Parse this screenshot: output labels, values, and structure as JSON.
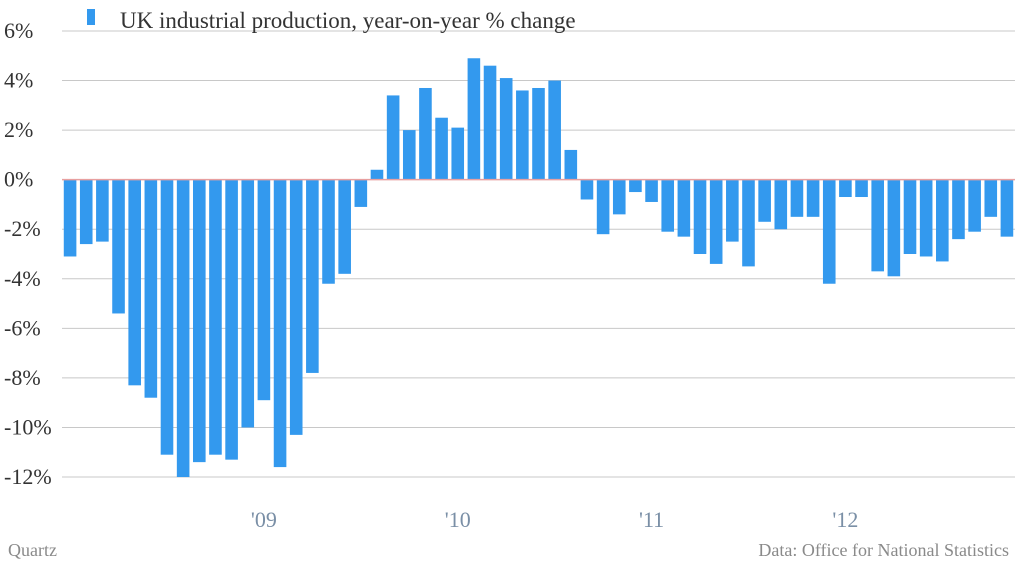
{
  "chart_data": {
    "type": "bar",
    "legend": {
      "label": "UK industrial production, year-on-year % change",
      "placement": "top-left"
    },
    "ylim": [
      -12,
      6
    ],
    "yticks": [
      6,
      4,
      2,
      0,
      -2,
      -4,
      -6,
      -8,
      -10,
      -12
    ],
    "y_tick_labels": [
      "6%",
      "4%",
      "2%",
      "0%",
      "-2%",
      "-4%",
      "-6%",
      "-8%",
      "-10%",
      "-12%"
    ],
    "x_tick_labels": [
      {
        "label": "'09",
        "index": 12
      },
      {
        "label": "'10",
        "index": 24
      },
      {
        "label": "'11",
        "index": 36
      },
      {
        "label": "'12",
        "index": 48
      }
    ],
    "grid": true,
    "series": [
      {
        "values": [
          -3.1,
          -2.6,
          -2.5,
          -5.4,
          -8.3,
          -8.8,
          -11.1,
          -12.0,
          -11.4,
          -11.1,
          -11.3,
          -10.0,
          -8.9,
          -11.6,
          -10.3,
          -7.8,
          -4.2,
          -3.8,
          -1.1,
          0.4,
          3.4,
          2.0,
          3.7,
          2.5,
          2.1,
          4.9,
          4.6,
          4.1,
          3.6,
          3.7,
          4.0,
          1.2,
          -0.8,
          -2.2,
          -1.4,
          -0.5,
          -0.9,
          -2.1,
          -2.3,
          -3.0,
          -3.4,
          -2.5,
          -3.5,
          -1.7,
          -2.0,
          -1.5,
          -1.5,
          -4.2,
          -0.7,
          -0.7,
          -3.7,
          -3.9,
          -3.0,
          -3.1,
          -3.3,
          -2.4,
          -2.1,
          -1.5,
          -2.3
        ],
        "color": "#3399ee"
      }
    ],
    "zero_line_color": "#e8a0a0",
    "grid_color": "#c8c8c8"
  },
  "footer": {
    "source_left": "Quartz",
    "source_right": "Data: Office for National Statistics"
  }
}
